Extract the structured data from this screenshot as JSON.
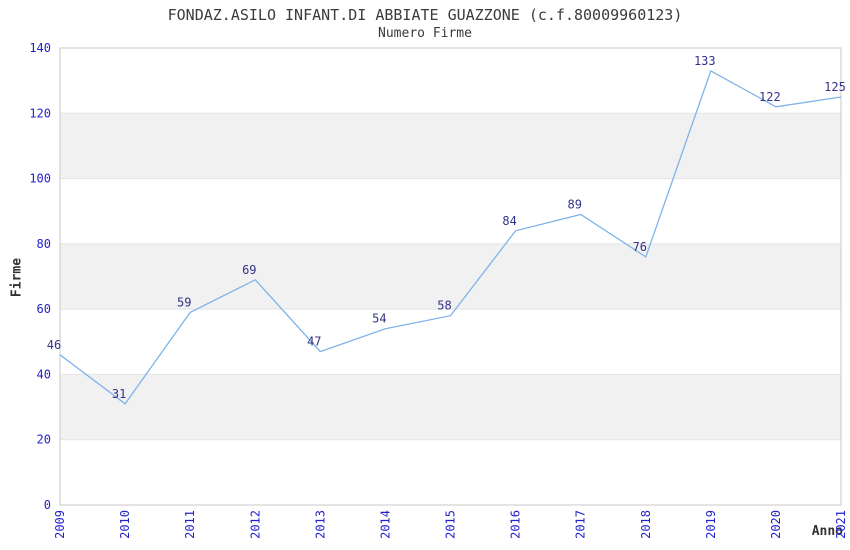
{
  "chart_data": {
    "type": "line",
    "title": "FONDAZ.ASILO INFANT.DI ABBIATE GUAZZONE (c.f.80009960123)",
    "subtitle": "Numero Firme",
    "xlabel": "Anno",
    "ylabel": "Firme",
    "categories": [
      "2009",
      "2010",
      "2011",
      "2012",
      "2013",
      "2014",
      "2015",
      "2016",
      "2017",
      "2018",
      "2019",
      "2020",
      "2021"
    ],
    "values": [
      46,
      31,
      59,
      69,
      47,
      54,
      58,
      84,
      89,
      76,
      133,
      122,
      125
    ],
    "ylim": [
      0,
      140
    ],
    "ytick_step": 20,
    "yticks": [
      "0",
      "20",
      "40",
      "60",
      "80",
      "100",
      "120",
      "140"
    ],
    "grid": "horizontal-bands-alternating",
    "legend": "none",
    "markers": "none",
    "data_labels_visible": true
  },
  "colors": {
    "background": "#FFFFFF",
    "line": "#7FB3E8",
    "data_label": "#333388",
    "tick_label": "#2323CC",
    "title_text": "#3B3B3B",
    "axis_title_text": "#333333",
    "band_fill": "#F1F1F1",
    "plot_border": "#C9C9C9",
    "gridline": "#E4E4E4"
  }
}
